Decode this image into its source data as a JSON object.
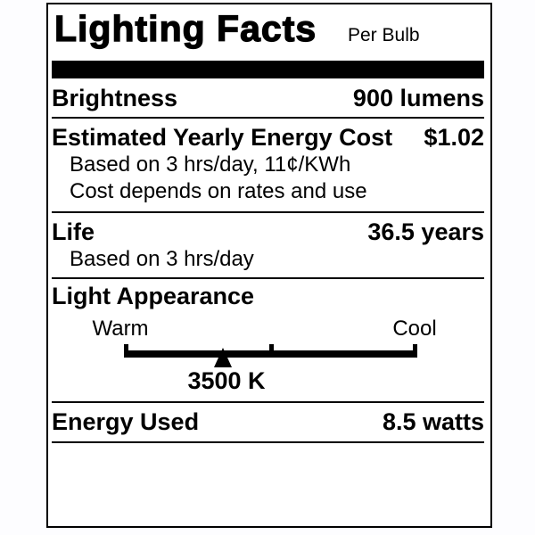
{
  "colors": {
    "ink": "#000000",
    "paper": "#ffffff",
    "page_bg": "#fdfdff"
  },
  "header": {
    "title": "Lighting Facts",
    "subtitle": "Per Bulb"
  },
  "rows": {
    "brightness": {
      "label": "Brightness",
      "value": "900 lumens"
    },
    "energy_cost": {
      "label": "Estimated Yearly Energy Cost",
      "value": "$1.02",
      "notes": [
        "Based on 3 hrs/day, 11¢/KWh",
        "Cost depends on rates and use"
      ]
    },
    "life": {
      "label": "Life",
      "value": "36.5 years",
      "notes": [
        "Based on 3 hrs/day"
      ]
    },
    "light_appearance": {
      "label": "Light Appearance",
      "left_label": "Warm",
      "right_label": "Cool",
      "marker_value": "3500 K",
      "marker_style": "left: 33.7%"
    },
    "energy_used": {
      "label": "Energy Used",
      "value": "8.5 watts"
    }
  }
}
